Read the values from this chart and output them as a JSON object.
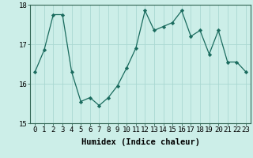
{
  "x": [
    0,
    1,
    2,
    3,
    4,
    5,
    6,
    7,
    8,
    9,
    10,
    11,
    12,
    13,
    14,
    15,
    16,
    17,
    18,
    19,
    20,
    21,
    22,
    23
  ],
  "y": [
    16.3,
    16.85,
    17.75,
    17.75,
    16.3,
    15.55,
    15.65,
    15.45,
    15.65,
    15.95,
    16.4,
    16.9,
    17.85,
    17.35,
    17.45,
    17.55,
    17.85,
    17.2,
    17.35,
    16.75,
    17.35,
    16.55,
    16.55,
    16.3
  ],
  "line_color": "#1a6b5e",
  "marker": "D",
  "marker_size": 2.2,
  "bg_color": "#cceee8",
  "grid_color": "#aad8d2",
  "spine_color": "#336655",
  "xlabel": "Humidex (Indice chaleur)",
  "ylabel": "",
  "ylim": [
    15,
    18
  ],
  "xlim": [
    -0.5,
    23.5
  ],
  "yticks": [
    15,
    16,
    17,
    18
  ],
  "xtick_labels": [
    "0",
    "1",
    "2",
    "3",
    "4",
    "5",
    "6",
    "7",
    "8",
    "9",
    "10",
    "11",
    "12",
    "13",
    "14",
    "15",
    "16",
    "17",
    "18",
    "19",
    "20",
    "21",
    "22",
    "23"
  ],
  "label_fontsize": 7.5,
  "tick_fontsize": 6.5
}
